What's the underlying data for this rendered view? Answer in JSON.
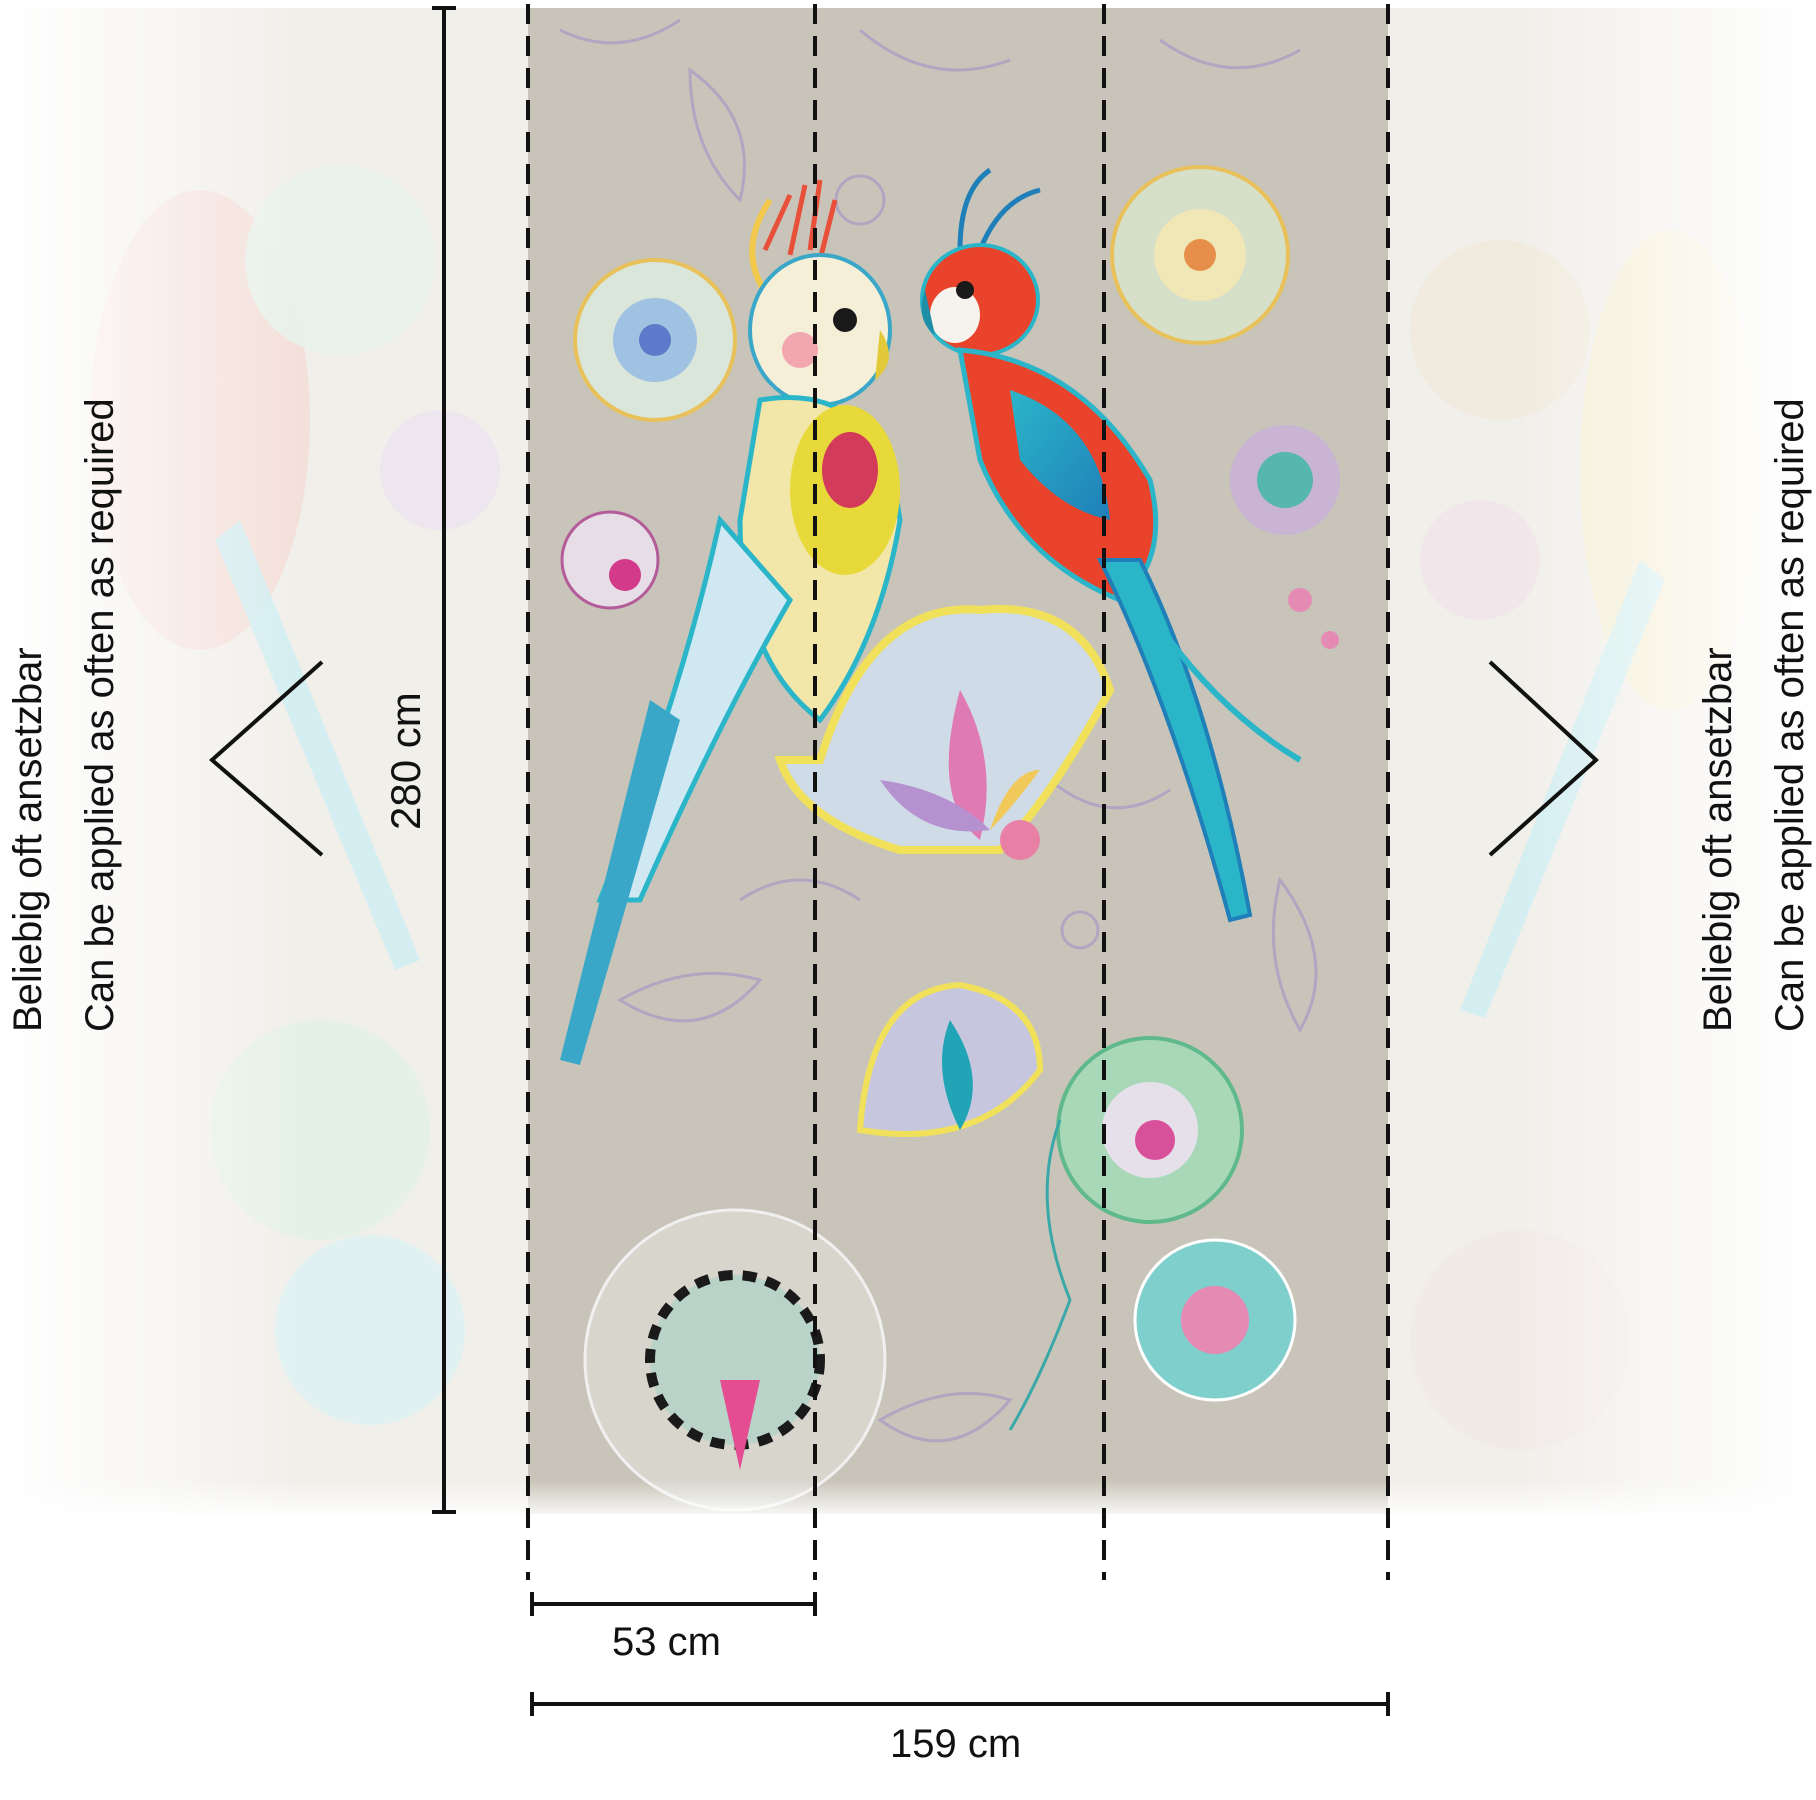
{
  "diagram": {
    "height_label": "280 cm",
    "panel_width_label": "53 cm",
    "total_width_label": "159 cm",
    "repeat_note_de": "Beliebig oft ansetzbar",
    "repeat_note_en": "Can be applied as often as required",
    "panel_count": 3
  },
  "colors": {
    "mural_background": "#c9c4b9",
    "faded_edge": "#efede8",
    "line": "#111111",
    "parrot_left_body": "#f2e6a8",
    "parrot_right_body": "#e9442b",
    "accent_turquoise": "#2bb5c9",
    "accent_pink": "#e0408a",
    "accent_lavender": "#a99bc6"
  }
}
